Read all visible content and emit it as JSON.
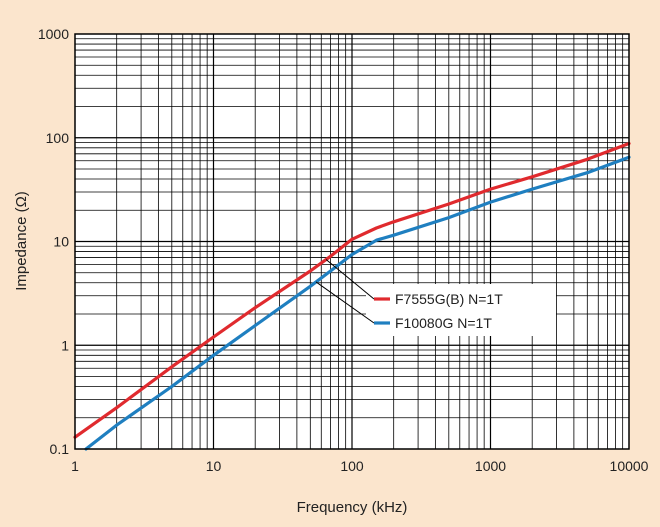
{
  "chart_data": {
    "type": "line",
    "title": "",
    "xlabel": "Frequency (kHz)",
    "ylabel": "Impedance (Ω)",
    "xscale": "log",
    "yscale": "log",
    "xlim": [
      1,
      10000
    ],
    "ylim": [
      0.1,
      1000
    ],
    "grid": true,
    "x_tick_labels": [
      "1",
      "10",
      "100",
      "1000",
      "10000"
    ],
    "y_tick_labels": [
      "0.1",
      "1",
      "10",
      "100",
      "1000"
    ],
    "legend_placement": "center (annotated with leader lines)",
    "series": [
      {
        "name": "F7555G(B) N=1T",
        "color": "#e02a2e",
        "x": [
          1,
          2,
          5,
          10,
          20,
          50,
          70,
          100,
          150,
          200,
          500,
          1000,
          2000,
          5000,
          10000
        ],
        "y": [
          0.13,
          0.25,
          0.62,
          1.2,
          2.3,
          5.2,
          7.2,
          10.5,
          13.5,
          15.5,
          23,
          32,
          42,
          62,
          88
        ]
      },
      {
        "name": "F10080G N=1T",
        "color": "#1f7fc0",
        "x": [
          1.2,
          2,
          5,
          10,
          20,
          50,
          70,
          100,
          150,
          200,
          500,
          1000,
          2000,
          5000,
          10000
        ],
        "y": [
          0.1,
          0.17,
          0.4,
          0.8,
          1.55,
          3.7,
          5.2,
          7.5,
          10.3,
          11.5,
          17,
          24,
          32,
          46,
          65
        ]
      }
    ]
  }
}
